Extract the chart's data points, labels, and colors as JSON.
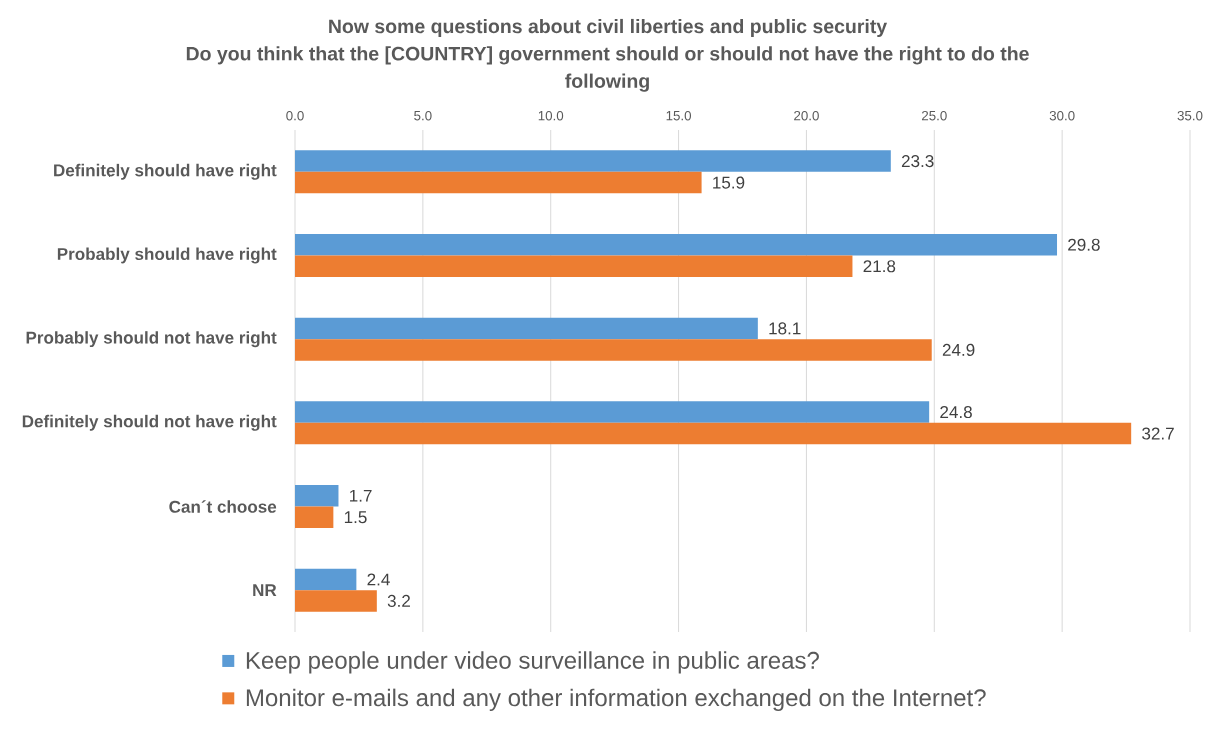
{
  "chart_data": {
    "type": "bar",
    "orientation": "horizontal",
    "title": "Now some questions about civil liberties and public security",
    "subtitle": "Do you think that the [COUNTRY] government should or should not have the right to do the following",
    "categories": [
      "Definitely should have right",
      "Probably should have right",
      "Probably should not have right",
      "Definitely should not have right",
      "Can´t choose",
      "NR"
    ],
    "series": [
      {
        "name": "Keep people under video surveillance in public areas?",
        "color": "#5b9bd5",
        "values": [
          23.3,
          29.8,
          18.1,
          24.8,
          1.7,
          2.4
        ]
      },
      {
        "name": "Monitor e-mails and any other information exchanged on the Internet?",
        "color": "#ed7d31",
        "values": [
          15.9,
          21.8,
          24.9,
          32.7,
          1.5,
          3.2
        ]
      }
    ],
    "xlim": [
      0,
      35
    ],
    "xticks": [
      {
        "value": 0,
        "label": "0.0"
      },
      {
        "value": 5,
        "label": "5.0"
      },
      {
        "value": 10,
        "label": "10.0"
      },
      {
        "value": 15,
        "label": "15.0"
      },
      {
        "value": 20,
        "label": "20.0"
      },
      {
        "value": 25,
        "label": "25.0"
      },
      {
        "value": 30,
        "label": "30.0"
      },
      {
        "value": 35,
        "label": "35.0"
      }
    ],
    "grid": "x",
    "legend": "bottom",
    "data_labels": true
  }
}
